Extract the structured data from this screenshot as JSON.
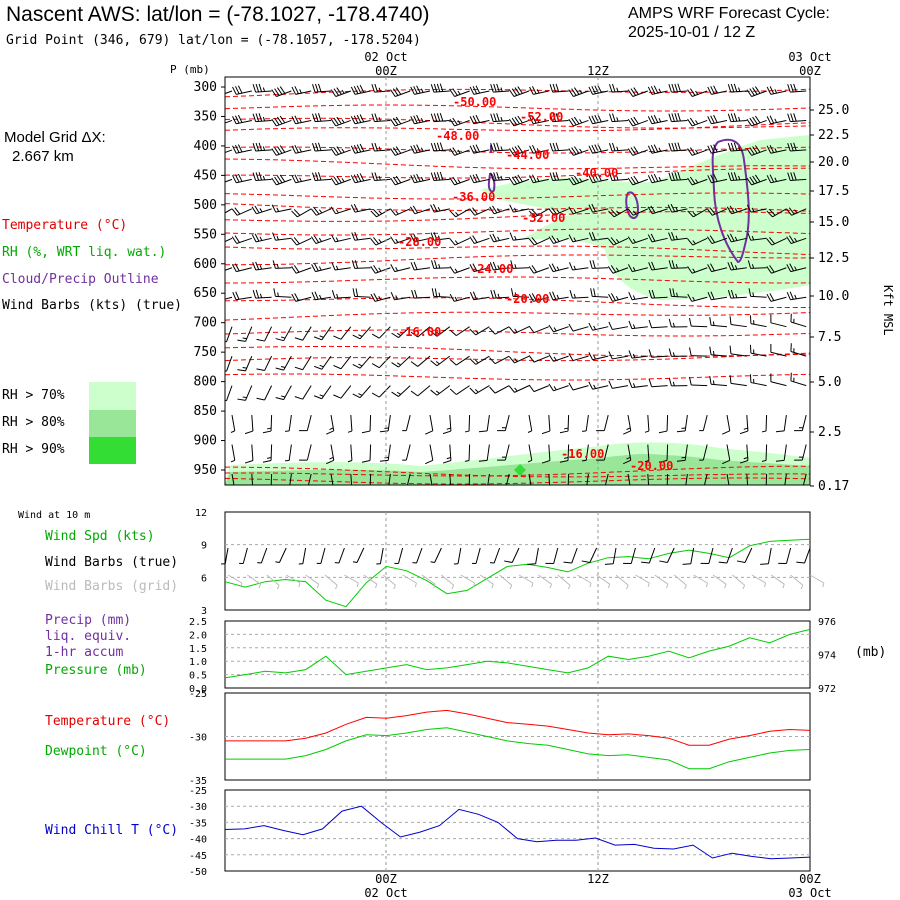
{
  "header": {
    "title": "Nascent AWS:  lat/lon = (-78.1027, -178.4740)",
    "subtitle": "Grid Point (346, 679) lat/lon = (-78.1057, -178.5204)",
    "cycle_line1": "AMPS WRF Forecast Cycle:",
    "cycle_line2": "2025-10-01 / 12  Z",
    "grid_label1": "Model Grid ΔX:",
    "grid_label2": "2.667 km"
  },
  "legend": {
    "temperature": "Temperature (°C)",
    "rh": "RH (%, WRT liq. wat.)",
    "cloud": "Cloud/Precip Outline",
    "wind": "Wind Barbs (kts) (true)",
    "rh70": "RH > 70%",
    "rh80": "RH > 80%",
    "rh90": "RH > 90%",
    "wind10m": "Wind at 10 m",
    "wspd": "Wind Spd (kts)",
    "wbarb_true": "Wind Barbs (true)",
    "wbarb_grid": "Wind Barbs (grid)",
    "precip1": "Precip (mm)",
    "precip2": "liq. equiv.",
    "precip3": "1-hr accum",
    "pressure": "Pressure (mb)",
    "temp2": "Temperature (°C)",
    "dewpoint": "Dewpoint (°C)",
    "windchill": "Wind Chill T (°C)",
    "pressure_unit": "(mb)",
    "kft": "Kft MSL",
    "p_axis": "P (mb)"
  },
  "colors": {
    "temp": "#ff0000",
    "rh": "#00cc00",
    "cloud": "#7030a0",
    "grid_barb": "#bbbbbb",
    "windchill": "#0000cc",
    "rh70": "#ccffcc",
    "rh80": "#99e699",
    "rh90": "#33dd33"
  },
  "chart_data": [
    {
      "type": "line",
      "panel": "cross-section",
      "x_ticks_top": [
        {
          "label": "02 Oct",
          "sub": "00Z"
        },
        {
          "label": "",
          "sub": "12Z"
        },
        {
          "label": "03 Oct",
          "sub": "00Z"
        }
      ],
      "pressure_ticks": [
        300,
        350,
        400,
        450,
        500,
        550,
        600,
        650,
        700,
        750,
        800,
        850,
        900,
        950
      ],
      "height_ticks": [
        "25.0",
        "22.5",
        "20.0",
        "17.5",
        "15.0",
        "12.5",
        "10.0",
        "7.5",
        "5.0",
        "2.5",
        "0.17"
      ],
      "isotherm_labels": [
        "-50.00",
        "-52.00",
        "-48.00",
        "-44.00",
        "-40.00",
        "-36.00",
        "-32.00",
        "-28.00",
        "-24.00",
        "-20.00",
        "-16.00",
        "-16.00",
        "-20.00"
      ]
    },
    {
      "type": "line",
      "panel": "10m wind speed",
      "ylim": [
        3,
        12
      ],
      "y_ticks": [
        3,
        6,
        9,
        12
      ],
      "series": [
        {
          "name": "Wind Spd (kts)",
          "values": [
            5.6,
            5.1,
            5.6,
            5.8,
            5.6,
            3.9,
            3.3,
            5.5,
            7.0,
            6.6,
            5.7,
            4.5,
            4.8,
            5.9,
            7.0,
            7.2,
            6.9,
            6.5,
            7.3,
            7.8,
            7.9,
            7.7,
            8.2,
            8.5,
            8.2,
            7.8,
            8.9,
            9.3,
            9.4,
            9.5
          ]
        }
      ]
    },
    {
      "type": "line",
      "panel": "pressure",
      "ylim": [
        972,
        976
      ],
      "y_ticks_left": [
        "0.0",
        "0.5",
        "1.0",
        "1.5",
        "2.0",
        "2.5"
      ],
      "y_ticks_right": [
        972,
        974,
        976
      ],
      "series": [
        {
          "name": "Pressure (mb)",
          "values": [
            972.6,
            972.8,
            973.0,
            972.9,
            973.1,
            973.9,
            972.8,
            973.0,
            973.2,
            973.4,
            973.1,
            973.2,
            973.4,
            973.6,
            973.5,
            973.3,
            973.1,
            972.9,
            973.2,
            973.9,
            973.7,
            973.9,
            974.2,
            973.8,
            974.2,
            974.5,
            975.0,
            974.7,
            975.2,
            975.5
          ]
        }
      ]
    },
    {
      "type": "line",
      "panel": "temperature/dewpoint",
      "ylim": [
        -35,
        -25
      ],
      "y_ticks": [
        -25,
        -30,
        -35
      ],
      "series": [
        {
          "name": "Temperature (°C)",
          "values": [
            -30.5,
            -30.5,
            -30.5,
            -30.5,
            -30.2,
            -29.6,
            -28.6,
            -27.8,
            -27.9,
            -27.6,
            -27.2,
            -27.0,
            -27.4,
            -27.9,
            -28.4,
            -28.6,
            -28.8,
            -29.2,
            -29.6,
            -29.8,
            -29.7,
            -29.9,
            -30.2,
            -31.0,
            -31.0,
            -30.3,
            -29.9,
            -29.4,
            -29.2,
            -29.3
          ]
        },
        {
          "name": "Dewpoint (°C)",
          "values": [
            -32.6,
            -32.6,
            -32.6,
            -32.6,
            -32.2,
            -31.5,
            -30.5,
            -29.8,
            -29.9,
            -29.6,
            -29.2,
            -29.0,
            -29.5,
            -30.0,
            -30.5,
            -30.8,
            -31.0,
            -31.5,
            -32.0,
            -32.2,
            -32.1,
            -32.4,
            -32.7,
            -33.7,
            -33.7,
            -32.9,
            -32.4,
            -31.9,
            -31.6,
            -31.5
          ]
        }
      ]
    },
    {
      "type": "line",
      "panel": "wind chill",
      "ylim": [
        -50,
        -25
      ],
      "y_ticks": [
        -25,
        -30,
        -35,
        -40,
        -45,
        -50
      ],
      "series": [
        {
          "name": "Wind Chill T (°C)",
          "values": [
            -37.2,
            -37.0,
            -36.0,
            -37.5,
            -38.8,
            -37.0,
            -31.5,
            -30.0,
            -35.0,
            -39.5,
            -38.0,
            -36.0,
            -31.0,
            -32.5,
            -35.0,
            -40.0,
            -41.0,
            -40.5,
            -40.5,
            -39.8,
            -42.0,
            -41.8,
            -43.0,
            -43.2,
            -42.0,
            -46.0,
            -44.5,
            -45.5,
            -46.2,
            -46.0,
            -45.7
          ]
        }
      ]
    },
    {
      "type": "line",
      "panel": "bottom axis",
      "x_ticks_bottom": [
        {
          "label": "02 Oct",
          "sub": "00Z"
        },
        {
          "label": "",
          "sub": "12Z"
        },
        {
          "label": "03 Oct",
          "sub": "00Z"
        }
      ]
    }
  ]
}
